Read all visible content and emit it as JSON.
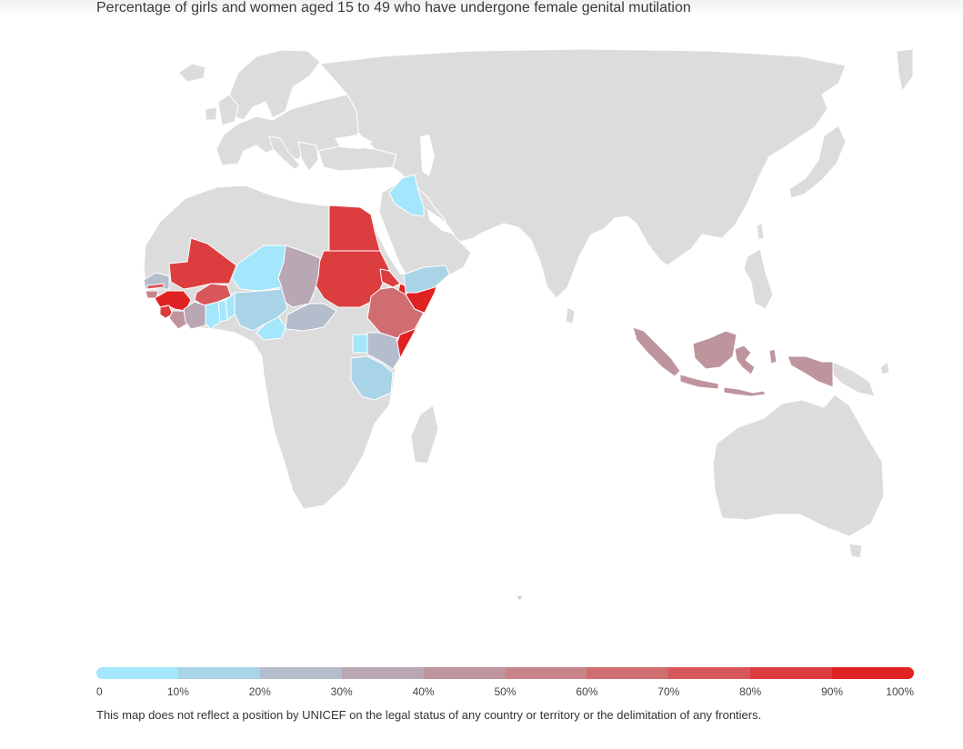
{
  "title": "Percentage of girls and women aged 15 to 49 who have undergone female genital mutilation",
  "legend": {
    "colors": [
      "#a4e6fb",
      "#a9d3e6",
      "#b4bdcb",
      "#b9a7b3",
      "#be949d",
      "#c88489",
      "#cf6d70",
      "#d7575a",
      "#dc3d3e",
      "#e02222"
    ],
    "labels": [
      "0",
      "10%",
      "20%",
      "30%",
      "40%",
      "50%",
      "60%",
      "70%",
      "80%",
      "90%",
      "100%"
    ]
  },
  "countries": {
    "mali": {
      "level": 8
    },
    "guinea": {
      "level": 9
    },
    "sierra_leone": {
      "level": 8
    },
    "gambia": {
      "level": 7
    },
    "guinea_bissau": {
      "level": 5
    },
    "senegal": {
      "level": 2
    },
    "burkina_faso": {
      "level": 7
    },
    "liberia": {
      "level": 4
    },
    "cote_divoire": {
      "level": 3
    },
    "ghana": {
      "level": 0
    },
    "togo": {
      "level": 0
    },
    "benin": {
      "level": 0
    },
    "niger": {
      "level": 0
    },
    "nigeria": {
      "level": 1
    },
    "cameroon": {
      "level": 0
    },
    "chad": {
      "level": 3
    },
    "central_african_republic": {
      "level": 2
    },
    "sudan": {
      "level": 8
    },
    "egypt": {
      "level": 8
    },
    "eritrea": {
      "level": 8
    },
    "djibouti": {
      "level": 9
    },
    "ethiopia": {
      "level": 6
    },
    "somalia": {
      "level": 9
    },
    "kenya": {
      "level": 2
    },
    "uganda": {
      "level": 0
    },
    "tanzania": {
      "level": 1
    },
    "yemen": {
      "level": 1
    },
    "iraq": {
      "level": 0
    },
    "indonesia": {
      "level": 4
    }
  },
  "disclaimer": "This map does not reflect a position by UNICEF on the legal status of any country or territory or the delimitation of any frontiers."
}
